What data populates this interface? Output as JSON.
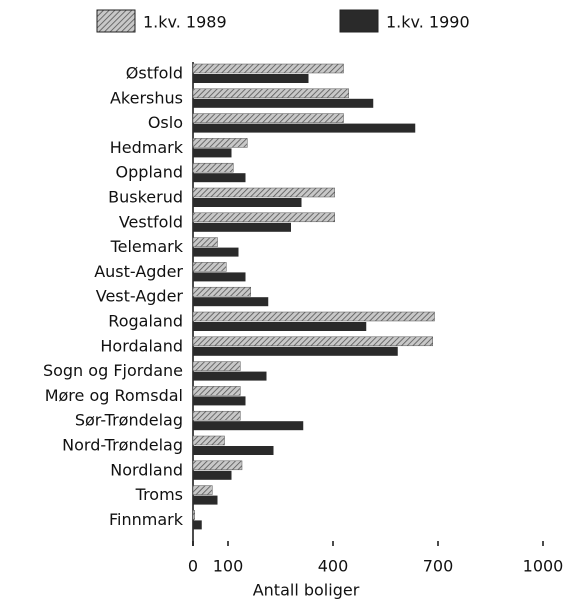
{
  "chart_data": {
    "type": "bar",
    "orientation": "horizontal",
    "x_label": "Antall boliger",
    "categories": [
      "Østfold",
      "Akershus",
      "Oslo",
      "Hedmark",
      "Oppland",
      "Buskerud",
      "Vestfold",
      "Telemark",
      "Aust-Agder",
      "Vest-Agder",
      "Rogaland",
      "Hordaland",
      "Sogn og Fjordane",
      "Møre og Romsdal",
      "Sør-Trøndelag",
      "Nord-Trøndelag",
      "Nordland",
      "Troms",
      "Finnmark"
    ],
    "series": [
      {
        "name": "1.kv. 1989",
        "color": "#9a9a9a",
        "hatch": true,
        "values": [
          430,
          445,
          430,
          155,
          115,
          405,
          405,
          70,
          95,
          165,
          690,
          685,
          135,
          135,
          135,
          90,
          140,
          55,
          5
        ]
      },
      {
        "name": "1.kv. 1990",
        "color": "#2a2a2a",
        "hatch": false,
        "values": [
          330,
          515,
          635,
          110,
          150,
          310,
          280,
          130,
          150,
          215,
          495,
          585,
          210,
          150,
          315,
          230,
          110,
          70,
          25
        ]
      }
    ],
    "xlim": [
      0,
      1000
    ],
    "xticks": [
      0,
      100,
      400,
      700,
      1000
    ],
    "grid": false
  }
}
